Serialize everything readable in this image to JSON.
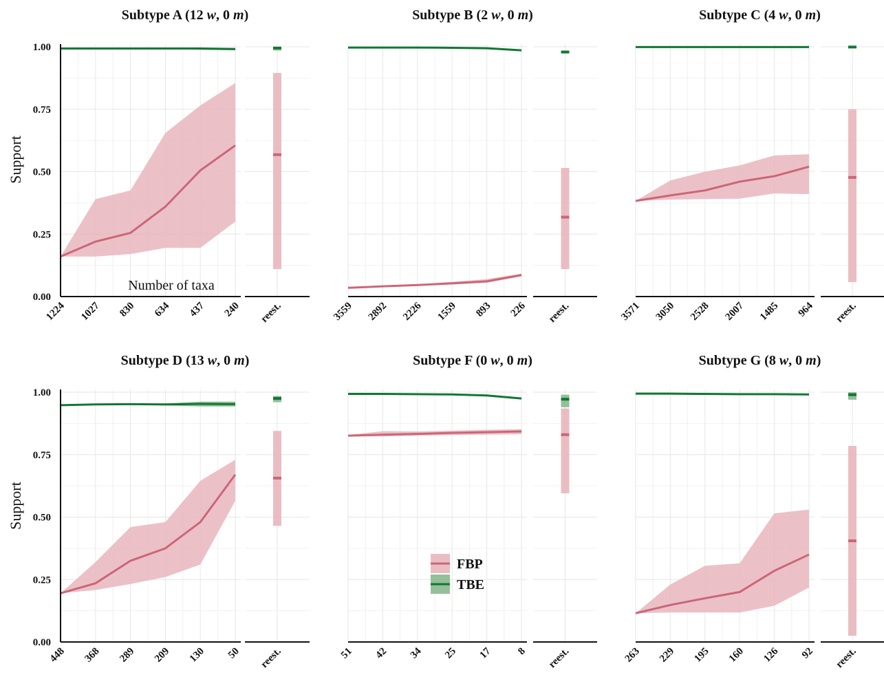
{
  "colors": {
    "fbp_line": "#cc6677",
    "fbp_band": "#e8b6bd",
    "tbe_line": "#117733",
    "tbe_band": "#88b88f",
    "grid": "#e6e6e6"
  },
  "y_axis": {
    "label": "Support",
    "ticks": [
      "0.00",
      "0.25",
      "0.50",
      "0.75",
      "1.00"
    ],
    "ylim": [
      0,
      1
    ]
  },
  "legend": {
    "items": [
      {
        "name": "FBP"
      },
      {
        "name": "TBE"
      }
    ]
  },
  "chart_data": [
    {
      "type": "line",
      "title": {
        "pre": "Subtype A (12 ",
        "w": "w",
        "mid": ", 0 ",
        "m": "m",
        "post": ")"
      },
      "x_ticks": [
        "1224",
        "1027",
        "830",
        "634",
        "437",
        "240"
      ],
      "x_label": "Number of taxa",
      "reest_label": "reest.",
      "series": [
        {
          "name": "FBP",
          "values": [
            0.16,
            0.22,
            0.255,
            0.36,
            0.505,
            0.605
          ],
          "band_low": [
            0.16,
            0.16,
            0.17,
            0.195,
            0.195,
            0.3
          ],
          "band_high": [
            0.16,
            0.39,
            0.425,
            0.655,
            0.765,
            0.855
          ]
        },
        {
          "name": "TBE",
          "values": [
            0.993,
            0.993,
            0.993,
            0.993,
            0.993,
            0.991
          ],
          "band_low": [
            0.991,
            0.991,
            0.991,
            0.991,
            0.988,
            0.986
          ],
          "band_high": [
            0.995,
            0.995,
            0.995,
            0.995,
            0.996,
            0.995
          ]
        }
      ],
      "reest": {
        "FBP": {
          "value": 0.568,
          "low": 0.11,
          "high": 0.895
        },
        "TBE": {
          "value": 0.995,
          "low": 0.985,
          "high": 1.0
        }
      }
    },
    {
      "type": "line",
      "title": {
        "pre": "Subtype B (2 ",
        "w": "w",
        "mid": ", 0 ",
        "m": "m",
        "post": ")"
      },
      "x_ticks": [
        "3559",
        "2892",
        "2226",
        "1559",
        "893",
        "226"
      ],
      "x_label": "",
      "reest_label": "reest.",
      "series": [
        {
          "name": "FBP",
          "values": [
            0.035,
            0.041,
            0.046,
            0.053,
            0.061,
            0.086
          ],
          "band_low": [
            0.035,
            0.039,
            0.044,
            0.048,
            0.055,
            0.081
          ],
          "band_high": [
            0.035,
            0.043,
            0.049,
            0.059,
            0.07,
            0.092
          ]
        },
        {
          "name": "TBE",
          "values": [
            0.997,
            0.997,
            0.997,
            0.996,
            0.994,
            0.986
          ],
          "band_low": [
            0.996,
            0.996,
            0.996,
            0.995,
            0.992,
            0.984
          ],
          "band_high": [
            0.998,
            0.998,
            0.998,
            0.997,
            0.996,
            0.989
          ]
        }
      ],
      "reest": {
        "FBP": {
          "value": 0.318,
          "low": 0.11,
          "high": 0.515
        },
        "TBE": {
          "value": 0.979,
          "low": 0.975,
          "high": 0.985
        }
      }
    },
    {
      "type": "line",
      "title": {
        "pre": "Subtype C (4 ",
        "w": "w",
        "mid": ", 0 ",
        "m": "m",
        "post": ")"
      },
      "x_ticks": [
        "3571",
        "3050",
        "2528",
        "2007",
        "1485",
        "964"
      ],
      "x_label": "",
      "reest_label": "reest.",
      "series": [
        {
          "name": "FBP",
          "values": [
            0.383,
            0.405,
            0.425,
            0.46,
            0.482,
            0.52
          ],
          "band_low": [
            0.383,
            0.388,
            0.39,
            0.392,
            0.413,
            0.41
          ],
          "band_high": [
            0.383,
            0.465,
            0.5,
            0.525,
            0.565,
            0.57
          ]
        },
        {
          "name": "TBE",
          "values": [
            0.999,
            0.999,
            0.999,
            0.999,
            0.999,
            0.999
          ],
          "band_low": [
            0.998,
            0.998,
            0.998,
            0.998,
            0.998,
            0.998
          ],
          "band_high": [
            1.0,
            1.0,
            1.0,
            1.0,
            1.0,
            1.0
          ]
        }
      ],
      "reest": {
        "FBP": {
          "value": 0.477,
          "low": 0.058,
          "high": 0.75
        },
        "TBE": {
          "value": 0.999,
          "low": 0.995,
          "high": 1.0
        }
      }
    },
    {
      "type": "line",
      "title": {
        "pre": "Subtype D (13 ",
        "w": "w",
        "mid": ", 0 ",
        "m": "m",
        "post": ")"
      },
      "x_ticks": [
        "448",
        "368",
        "289",
        "209",
        "130",
        "50"
      ],
      "x_label": "",
      "reest_label": "reest.",
      "series": [
        {
          "name": "FBP",
          "values": [
            0.195,
            0.235,
            0.325,
            0.375,
            0.48,
            0.67
          ],
          "band_low": [
            0.195,
            0.208,
            0.232,
            0.26,
            0.31,
            0.565
          ],
          "band_high": [
            0.195,
            0.32,
            0.46,
            0.48,
            0.645,
            0.73
          ]
        },
        {
          "name": "TBE",
          "values": [
            0.948,
            0.951,
            0.952,
            0.951,
            0.953,
            0.952
          ],
          "band_low": [
            0.946,
            0.948,
            0.949,
            0.947,
            0.943,
            0.943
          ],
          "band_high": [
            0.95,
            0.953,
            0.954,
            0.955,
            0.962,
            0.962
          ]
        }
      ],
      "reest": {
        "FBP": {
          "value": 0.656,
          "low": 0.465,
          "high": 0.845
        },
        "TBE": {
          "value": 0.975,
          "low": 0.96,
          "high": 0.985
        }
      }
    },
    {
      "type": "line",
      "title": {
        "pre": "Subtype F (0 ",
        "w": "w",
        "mid": ", 0 ",
        "m": "m",
        "post": ")"
      },
      "x_ticks": [
        "51",
        "42",
        "34",
        "25",
        "17",
        "8"
      ],
      "x_label": "",
      "reest_label": "reest.",
      "series": [
        {
          "name": "FBP",
          "values": [
            0.826,
            0.83,
            0.833,
            0.837,
            0.84,
            0.843
          ],
          "band_low": [
            0.823,
            0.823,
            0.826,
            0.828,
            0.83,
            0.832
          ],
          "band_high": [
            0.829,
            0.844,
            0.843,
            0.846,
            0.85,
            0.852
          ]
        },
        {
          "name": "TBE",
          "values": [
            0.993,
            0.993,
            0.992,
            0.991,
            0.987,
            0.975
          ],
          "band_low": [
            0.991,
            0.991,
            0.99,
            0.989,
            0.985,
            0.971
          ],
          "band_high": [
            0.995,
            0.995,
            0.994,
            0.993,
            0.989,
            0.978
          ]
        }
      ],
      "reest": {
        "FBP": {
          "value": 0.83,
          "low": 0.595,
          "high": 0.935
        },
        "TBE": {
          "value": 0.972,
          "low": 0.94,
          "high": 0.99
        }
      }
    },
    {
      "type": "line",
      "title": {
        "pre": "Subtype G (8 ",
        "w": "w",
        "mid": ", 0 ",
        "m": "m",
        "post": ")"
      },
      "x_ticks": [
        "263",
        "229",
        "195",
        "160",
        "126",
        "92"
      ],
      "x_label": "",
      "reest_label": "reest.",
      "series": [
        {
          "name": "FBP",
          "values": [
            0.115,
            0.148,
            0.175,
            0.2,
            0.285,
            0.35
          ],
          "band_low": [
            0.115,
            0.118,
            0.118,
            0.118,
            0.145,
            0.218
          ],
          "band_high": [
            0.115,
            0.23,
            0.305,
            0.315,
            0.515,
            0.53
          ]
        },
        {
          "name": "TBE",
          "values": [
            0.994,
            0.994,
            0.993,
            0.992,
            0.992,
            0.991
          ],
          "band_low": [
            0.992,
            0.992,
            0.991,
            0.99,
            0.99,
            0.988
          ],
          "band_high": [
            0.996,
            0.996,
            0.995,
            0.994,
            0.995,
            0.994
          ]
        }
      ],
      "reest": {
        "FBP": {
          "value": 0.405,
          "low": 0.025,
          "high": 0.785
        },
        "TBE": {
          "value": 0.99,
          "low": 0.97,
          "high": 1.0
        }
      }
    }
  ]
}
